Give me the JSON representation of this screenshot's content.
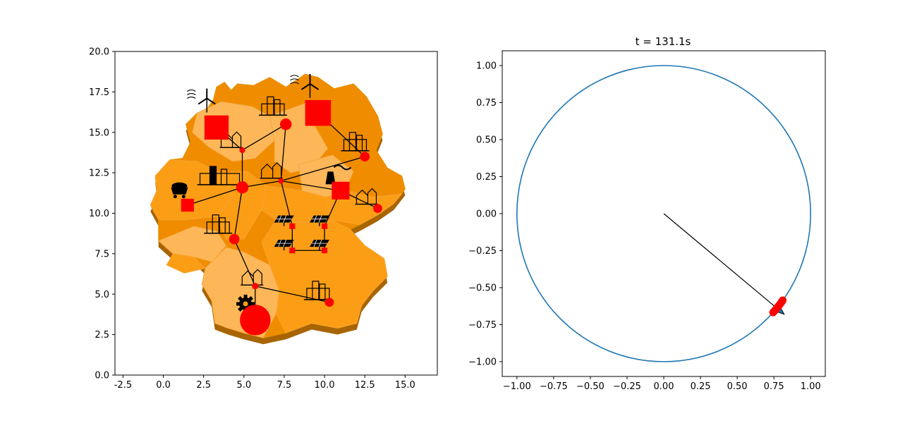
{
  "colors": {
    "region_light": "#fdb758",
    "region_mid": "#fb9e15",
    "region_dark": "#f08c00",
    "region_side": "#a86400",
    "node": "#ff0000",
    "edge": "#000000",
    "circle": "#1f77b4",
    "arrow": "#000000"
  },
  "chart_data": [
    {
      "type": "scatter",
      "title": "",
      "xlabel": "",
      "ylabel": "",
      "xlim": [
        -3.0,
        17.0
      ],
      "ylim": [
        0,
        20
      ],
      "xticks": [
        "-2.5",
        "0.0",
        "2.5",
        "5.0",
        "7.5",
        "10.0",
        "12.5",
        "15.0"
      ],
      "xtick_values": [
        -2.5,
        0,
        2.5,
        5,
        7.5,
        10,
        12.5,
        15
      ],
      "yticks": [
        "0.0",
        "2.5",
        "5.0",
        "7.5",
        "10.0",
        "12.5",
        "15.0",
        "17.5",
        "20.0"
      ],
      "ytick_values": [
        0,
        2.5,
        5,
        7.5,
        10,
        12.5,
        15,
        17.5,
        20
      ],
      "grid": false,
      "nodes": [
        {
          "id": "wind-west",
          "x": 3.3,
          "y": 15.3,
          "shape": "square",
          "size": 1.5,
          "icon": "wind-turbine-icon"
        },
        {
          "id": "wind-north",
          "x": 9.6,
          "y": 16.2,
          "shape": "square",
          "size": 1.6,
          "icon": "wind-turbine-icon"
        },
        {
          "id": "city-hamburg",
          "x": 7.6,
          "y": 15.5,
          "shape": "circle",
          "size": 0.36,
          "icon": "city-icon"
        },
        {
          "id": "town-bremen",
          "x": 4.9,
          "y": 13.9,
          "shape": "circle",
          "size": 0.18,
          "icon": "town-icon"
        },
        {
          "id": "city-berlin",
          "x": 12.5,
          "y": 13.5,
          "shape": "circle",
          "size": 0.3,
          "icon": "city-icon"
        },
        {
          "id": "town-center",
          "x": 7.3,
          "y": 12.0,
          "shape": "circle",
          "size": 0.17,
          "icon": "town-icon"
        },
        {
          "id": "industry-ruhr",
          "x": 4.9,
          "y": 11.6,
          "shape": "circle",
          "size": 0.38,
          "icon": "industry-skyline-icon"
        },
        {
          "id": "nuclear-east",
          "x": 11.0,
          "y": 11.4,
          "shape": "square",
          "size": 1.1,
          "icon": "power-plant-icon"
        },
        {
          "id": "town-east",
          "x": 13.3,
          "y": 10.3,
          "shape": "circle",
          "size": 0.28,
          "icon": "town-icon"
        },
        {
          "id": "coal-west",
          "x": 1.5,
          "y": 10.5,
          "shape": "square",
          "size": 0.8,
          "icon": "coal-cart-icon"
        },
        {
          "id": "city-frankfurt",
          "x": 4.4,
          "y": 8.4,
          "shape": "circle",
          "size": 0.32,
          "icon": "city-icon"
        },
        {
          "id": "solar-1",
          "x": 8.0,
          "y": 9.2,
          "shape": "square",
          "size": 0.35,
          "icon": "solar-panel-icon"
        },
        {
          "id": "solar-2",
          "x": 10.0,
          "y": 9.2,
          "shape": "square",
          "size": 0.35,
          "icon": "solar-panel-icon"
        },
        {
          "id": "solar-3",
          "x": 8.0,
          "y": 7.7,
          "shape": "square",
          "size": 0.35,
          "icon": "solar-panel-icon"
        },
        {
          "id": "solar-4",
          "x": 10.0,
          "y": 7.7,
          "shape": "square",
          "size": 0.35,
          "icon": "solar-panel-icon"
        },
        {
          "id": "town-stuttgart",
          "x": 5.7,
          "y": 5.5,
          "shape": "circle",
          "size": 0.2,
          "icon": "town-icon"
        },
        {
          "id": "city-munich",
          "x": 10.3,
          "y": 4.5,
          "shape": "circle",
          "size": 0.28,
          "icon": "city-icon"
        },
        {
          "id": "factory-south",
          "x": 5.7,
          "y": 3.4,
          "shape": "circle",
          "size": 0.95,
          "icon": "factory-gear-icon"
        }
      ],
      "edges": [
        [
          "wind-west",
          "town-bremen"
        ],
        [
          "town-bremen",
          "city-hamburg"
        ],
        [
          "city-hamburg",
          "town-center"
        ],
        [
          "wind-north",
          "city-berlin"
        ],
        [
          "town-bremen",
          "industry-ruhr"
        ],
        [
          "town-center",
          "industry-ruhr"
        ],
        [
          "town-center",
          "nuclear-east"
        ],
        [
          "town-center",
          "city-berlin"
        ],
        [
          "industry-ruhr",
          "coal-west"
        ],
        [
          "industry-ruhr",
          "city-frankfurt"
        ],
        [
          "nuclear-east",
          "town-east"
        ],
        [
          "nuclear-east",
          "solar-2"
        ],
        [
          "town-center",
          "solar-1"
        ],
        [
          "solar-1",
          "solar-3"
        ],
        [
          "solar-2",
          "solar-4"
        ],
        [
          "solar-3",
          "solar-4"
        ],
        [
          "city-frankfurt",
          "town-stuttgart"
        ],
        [
          "town-stuttgart",
          "city-munich"
        ],
        [
          "town-stuttgart",
          "factory-south"
        ]
      ]
    },
    {
      "type": "line",
      "title": "t = 131.1s",
      "xlabel": "",
      "ylabel": "",
      "xlim": [
        -1.1,
        1.1
      ],
      "ylim": [
        -1.1,
        1.1
      ],
      "xticks": [
        "−1.00",
        "−0.75",
        "−0.50",
        "−0.25",
        "0.00",
        "0.25",
        "0.50",
        "0.75",
        "1.00"
      ],
      "xtick_values": [
        -1.0,
        -0.75,
        -0.5,
        -0.25,
        0,
        0.25,
        0.5,
        0.75,
        1.0
      ],
      "yticks": [
        "−1.00",
        "−0.75",
        "−0.50",
        "−0.25",
        "0.00",
        "0.25",
        "0.50",
        "0.75",
        "1.00"
      ],
      "ytick_values": [
        -1.0,
        -0.75,
        -0.5,
        -0.25,
        0,
        0.25,
        0.5,
        0.75,
        1.0
      ],
      "grid": false,
      "circle": {
        "center": [
          0,
          0
        ],
        "radius": 1.0
      },
      "arrow": {
        "from": [
          0,
          0
        ],
        "to": [
          0.82,
          -0.68
        ]
      },
      "points": [
        {
          "x": 0.745,
          "y": -0.667
        },
        {
          "x": 0.755,
          "y": -0.656
        },
        {
          "x": 0.765,
          "y": -0.644
        },
        {
          "x": 0.775,
          "y": -0.632
        },
        {
          "x": 0.785,
          "y": -0.62
        },
        {
          "x": 0.795,
          "y": -0.607
        },
        {
          "x": 0.803,
          "y": -0.596
        },
        {
          "x": 0.81,
          "y": -0.586
        }
      ]
    }
  ]
}
